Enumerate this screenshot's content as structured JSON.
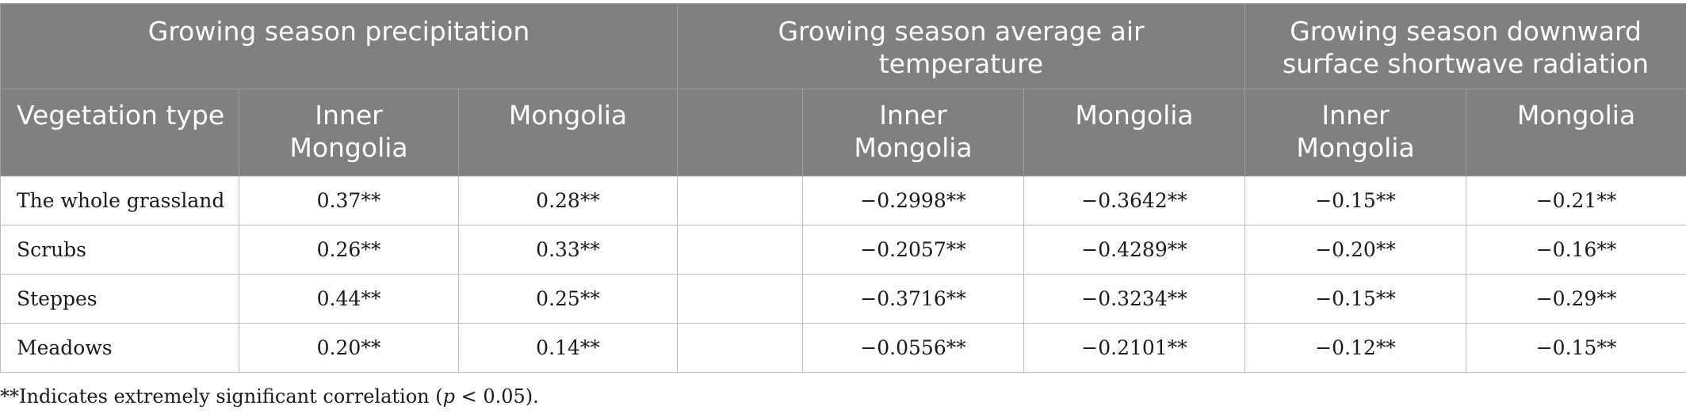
{
  "header": {
    "groups": [
      "Growing season precipitation",
      "Growing season average air temperature",
      "Growing season downward surface shortwave radiation"
    ],
    "columns": {
      "vegetation_type": "Vegetation type",
      "inner_mongolia": "Inner Mongolia",
      "mongolia": "Mongolia"
    }
  },
  "rows": [
    {
      "type": "The whole grassland",
      "precip_im": "0.37**",
      "precip_mn": "0.28**",
      "temp_im": "−0.2998**",
      "temp_mn": "−0.3642**",
      "rad_im": "−0.15**",
      "rad_mn": "−0.21**"
    },
    {
      "type": "Scrubs",
      "precip_im": "0.26**",
      "precip_mn": "0.33**",
      "temp_im": "−0.2057**",
      "temp_mn": "−0.4289**",
      "rad_im": "−0.20**",
      "rad_mn": "−0.16**"
    },
    {
      "type": "Steppes",
      "precip_im": "0.44**",
      "precip_mn": "0.25**",
      "temp_im": "−0.3716**",
      "temp_mn": "−0.3234**",
      "rad_im": "−0.15**",
      "rad_mn": "−0.29**"
    },
    {
      "type": "Meadows",
      "precip_im": "0.20**",
      "precip_mn": "0.14**",
      "temp_im": "−0.0556**",
      "temp_mn": "−0.2101**",
      "rad_im": "−0.12**",
      "rad_mn": "−0.15**"
    }
  ],
  "footnote": {
    "prefix": "**Indicates extremely significant correlation (",
    "p": "p",
    "suffix": " < 0.05)."
  },
  "colors": {
    "header_bg": "#808080",
    "header_text": "#ffffff",
    "border": "#c8c8c8"
  }
}
